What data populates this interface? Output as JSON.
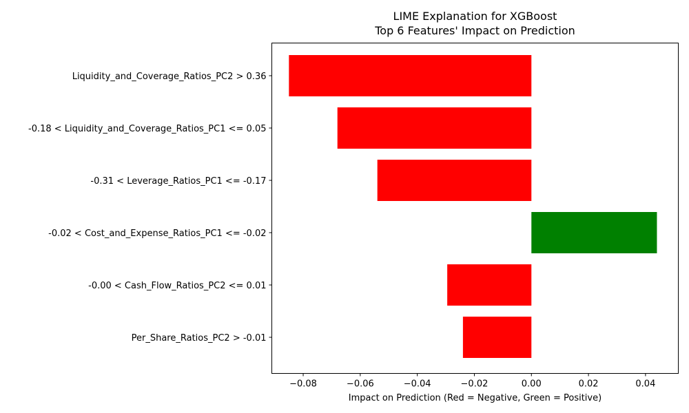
{
  "chart_data": {
    "type": "bar",
    "orientation": "horizontal",
    "title": "LIME Explanation for XGBoost",
    "subtitle": "Top 6 Features' Impact on Prediction",
    "xlabel": "Impact on Prediction (Red = Negative, Green = Positive)",
    "ylabel": "",
    "xlim": [
      -0.091,
      0.0515
    ],
    "xticks": [
      -0.08,
      -0.06,
      -0.04,
      -0.02,
      0.0,
      0.02,
      0.04
    ],
    "xtick_labels": [
      "−0.08",
      "−0.06",
      "−0.04",
      "−0.02",
      "0.00",
      "0.02",
      "0.04"
    ],
    "grid": false,
    "legend": "none",
    "categories": [
      "Liquidity_and_Coverage_Ratios_PC2 > 0.36",
      "-0.18 < Liquidity_and_Coverage_Ratios_PC1 <= 0.05",
      "-0.31 < Leverage_Ratios_PC1 <= -0.17",
      "-0.02 < Cost_and_Expense_Ratios_PC1 <= -0.02",
      "-0.00 < Cash_Flow_Ratios_PC2 <= 0.01",
      "Per_Share_Ratios_PC2 > -0.01"
    ],
    "values": [
      -0.085,
      -0.068,
      -0.054,
      0.044,
      -0.0295,
      -0.024
    ],
    "colors": {
      "negative": "#ff0000",
      "positive": "#008000"
    }
  }
}
